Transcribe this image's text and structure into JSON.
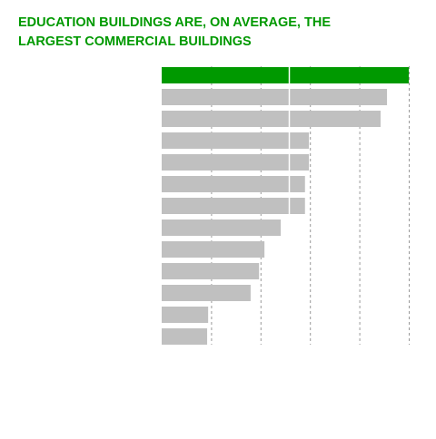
{
  "chart_data": {
    "type": "barh",
    "title": [
      "EDUCATION BUILDINGS ARE, ON AVERAGE, THE",
      "LARGEST COMMERCIAL BUILDINGS"
    ],
    "categories": [
      null,
      null,
      null,
      null,
      null,
      null,
      null,
      null,
      null,
      null,
      null,
      null,
      null
    ],
    "values": [
      5.0,
      4.56,
      4.43,
      2.98,
      2.98,
      2.9,
      2.9,
      2.41,
      2.08,
      1.97,
      1.8,
      0.94,
      0.92
    ],
    "colors": [
      "#009900",
      "#c0c0c0",
      "#c0c0c0",
      "#c0c0c0",
      "#c0c0c0",
      "#c0c0c0",
      "#c0c0c0",
      "#c0c0c0",
      "#c0c0c0",
      "#c0c0c0",
      "#c0c0c0",
      "#c0c0c0",
      "#c0c0c0"
    ],
    "xlim": [
      0,
      5
    ],
    "xticks": [
      1,
      2,
      3,
      4,
      5
    ],
    "grid": true
  }
}
